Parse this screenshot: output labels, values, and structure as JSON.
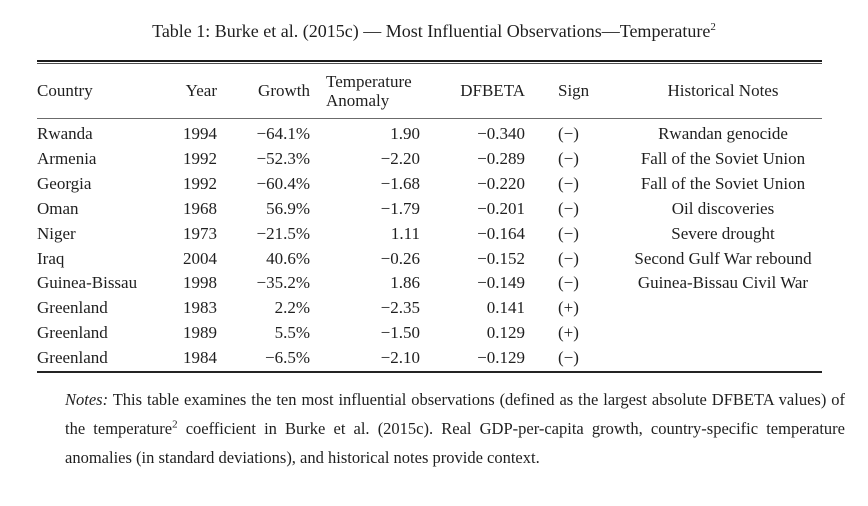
{
  "page": {
    "background": "#ffffff",
    "text_color": "#1f1f1f",
    "rule_dark": "#1c1c1c",
    "rule_gray": "#6b6b6b"
  },
  "title": {
    "main": "Table 1: Burke et al. (2015c) — Most Influential Observations—Temperature",
    "sup": "2"
  },
  "table": {
    "columns": [
      "Country",
      "Year",
      "Growth",
      "Temperature Anomaly",
      "DFBETA",
      "Sign",
      "Historical Notes"
    ],
    "rows": [
      {
        "country": "Rwanda",
        "year": "1994",
        "growth": "−64.1%",
        "anomaly": "1.90",
        "dfbeta": "−0.340",
        "sign": "(−)",
        "note": "Rwandan genocide"
      },
      {
        "country": "Armenia",
        "year": "1992",
        "growth": "−52.3%",
        "anomaly": "−2.20",
        "dfbeta": "−0.289",
        "sign": "(−)",
        "note": "Fall of the Soviet Union"
      },
      {
        "country": "Georgia",
        "year": "1992",
        "growth": "−60.4%",
        "anomaly": "−1.68",
        "dfbeta": "−0.220",
        "sign": "(−)",
        "note": "Fall of the Soviet Union"
      },
      {
        "country": "Oman",
        "year": "1968",
        "growth": "56.9%",
        "anomaly": "−1.79",
        "dfbeta": "−0.201",
        "sign": "(−)",
        "note": "Oil discoveries"
      },
      {
        "country": "Niger",
        "year": "1973",
        "growth": "−21.5%",
        "anomaly": "1.11",
        "dfbeta": "−0.164",
        "sign": "(−)",
        "note": "Severe drought"
      },
      {
        "country": "Iraq",
        "year": "2004",
        "growth": "40.6%",
        "anomaly": "−0.26",
        "dfbeta": "−0.152",
        "sign": "(−)",
        "note": "Second Gulf War rebound"
      },
      {
        "country": "Guinea-Bissau",
        "year": "1998",
        "growth": "−35.2%",
        "anomaly": "1.86",
        "dfbeta": "−0.149",
        "sign": "(−)",
        "note": "Guinea-Bissau Civil War"
      },
      {
        "country": "Greenland",
        "year": "1983",
        "growth": "2.2%",
        "anomaly": "−2.35",
        "dfbeta": "0.141",
        "sign": "(+)",
        "note": ""
      },
      {
        "country": "Greenland",
        "year": "1989",
        "growth": "5.5%",
        "anomaly": "−1.50",
        "dfbeta": "0.129",
        "sign": "(+)",
        "note": ""
      },
      {
        "country": "Greenland",
        "year": "1984",
        "growth": "−6.5%",
        "anomaly": "−2.10",
        "dfbeta": "−0.129",
        "sign": "(−)",
        "note": ""
      }
    ]
  },
  "notes": {
    "label": "Notes:",
    "part1": " This table examines the ten most influential observations (defined as the largest absolute DFBETA values) of the temperature",
    "sup": "2",
    "part2": " coefficient in Burke et al. (2015c). Real GDP-per-capita growth, country-specific temperature anomalies (in standard deviations), and historical notes provide context."
  }
}
